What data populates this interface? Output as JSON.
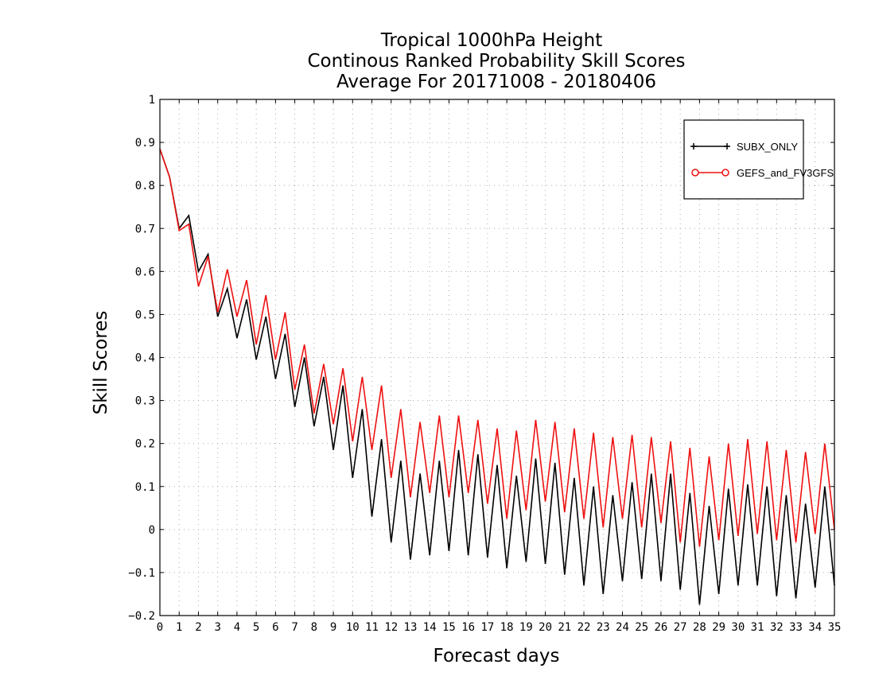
{
  "chart_data": {
    "type": "line",
    "title": [
      "Tropical 1000hPa Height",
      "Continous Ranked Probability Skill Scores",
      "Average For 20171008 - 20180406"
    ],
    "xlabel": "Forecast days",
    "ylabel": "Skill Scores",
    "xlim": [
      0,
      35
    ],
    "ylim": [
      -0.2,
      1
    ],
    "x_ticks": [
      0,
      1,
      2,
      3,
      4,
      5,
      6,
      7,
      8,
      9,
      10,
      11,
      12,
      13,
      14,
      15,
      16,
      17,
      18,
      19,
      20,
      21,
      22,
      23,
      24,
      25,
      26,
      27,
      28,
      29,
      30,
      31,
      32,
      33,
      34,
      35
    ],
    "y_ticks": [
      -0.2,
      -0.1,
      0,
      0.1,
      0.2,
      0.3,
      0.4,
      0.5,
      0.6,
      0.7,
      0.8,
      0.9,
      1
    ],
    "y_tick_labels": [
      "−0.2",
      "−0.1",
      "0",
      "0.1",
      "0.2",
      "0.3",
      "0.4",
      "0.5",
      "0.6",
      "0.7",
      "0.8",
      "0.9",
      "1"
    ],
    "grid": true,
    "legend_position": "top-right",
    "x": [
      0,
      0.5,
      1,
      1.5,
      2,
      2.5,
      3,
      3.5,
      4,
      4.5,
      5,
      5.5,
      6,
      6.5,
      7,
      7.5,
      8,
      8.5,
      9,
      9.5,
      10,
      10.5,
      11,
      11.5,
      12,
      12.5,
      13,
      13.5,
      14,
      14.5,
      15,
      15.5,
      16,
      16.5,
      17,
      17.5,
      18,
      18.5,
      19,
      19.5,
      20,
      20.5,
      21,
      21.5,
      22,
      22.5,
      23,
      23.5,
      24,
      24.5,
      25,
      25.5,
      26,
      26.5,
      27,
      27.5,
      28,
      28.5,
      29,
      29.5,
      30,
      30.5,
      31,
      31.5,
      32,
      32.5,
      33,
      33.5,
      34,
      34.5,
      35
    ],
    "series": [
      {
        "name": "SUBX ONLY",
        "color": "#000000",
        "marker": "plus",
        "values": [
          0.885,
          0.82,
          0.7,
          0.73,
          0.6,
          0.64,
          0.495,
          0.56,
          0.445,
          0.535,
          0.395,
          0.495,
          0.35,
          0.455,
          0.285,
          0.4,
          0.24,
          0.355,
          0.185,
          0.335,
          0.12,
          0.28,
          0.03,
          0.21,
          -0.03,
          0.16,
          -0.07,
          0.13,
          -0.06,
          0.16,
          -0.05,
          0.185,
          -0.06,
          0.175,
          -0.065,
          0.15,
          -0.09,
          0.125,
          -0.075,
          0.165,
          -0.08,
          0.155,
          -0.105,
          0.12,
          -0.13,
          0.1,
          -0.15,
          0.08,
          -0.12,
          0.11,
          -0.115,
          0.13,
          -0.12,
          0.13,
          -0.14,
          0.085,
          -0.175,
          0.055,
          -0.15,
          0.095,
          -0.13,
          0.105,
          -0.13,
          0.1,
          -0.155,
          0.08,
          -0.16,
          0.06,
          -0.135,
          0.1,
          -0.13
        ]
      },
      {
        "name": "GEFS_and_FV3GFS",
        "color": "#ee1111",
        "marker": "circle",
        "values": [
          0.885,
          0.82,
          0.695,
          0.71,
          0.565,
          0.635,
          0.505,
          0.605,
          0.495,
          0.58,
          0.43,
          0.545,
          0.395,
          0.505,
          0.325,
          0.43,
          0.27,
          0.385,
          0.245,
          0.375,
          0.205,
          0.355,
          0.185,
          0.335,
          0.12,
          0.28,
          0.075,
          0.25,
          0.085,
          0.265,
          0.075,
          0.265,
          0.085,
          0.255,
          0.06,
          0.235,
          0.025,
          0.23,
          0.045,
          0.255,
          0.065,
          0.25,
          0.04,
          0.235,
          0.025,
          0.225,
          0.005,
          0.215,
          0.025,
          0.22,
          0.005,
          0.215,
          0.015,
          0.205,
          -0.03,
          0.19,
          -0.04,
          0.17,
          -0.025,
          0.2,
          -0.015,
          0.21,
          -0.01,
          0.205,
          -0.025,
          0.185,
          -0.03,
          0.18,
          -0.01,
          0.2,
          0.0
        ]
      }
    ]
  },
  "legend": {
    "items": [
      {
        "label": "SUBX_ONLY",
        "color": "#000000"
      },
      {
        "label": "GEFS_and_FV3GFS",
        "color": "#ee1111"
      }
    ]
  }
}
